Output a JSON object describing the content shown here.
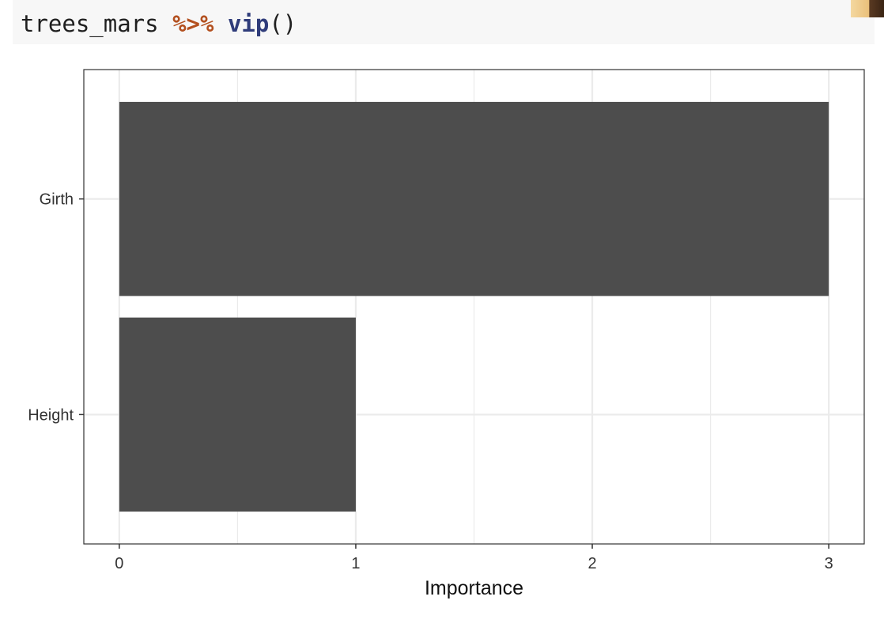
{
  "code": {
    "object": "trees_mars",
    "operator": "%>%",
    "function": "vip",
    "parens": "()"
  },
  "avatar_icon": "user-avatar-icon",
  "chart_data": {
    "type": "bar",
    "orientation": "horizontal",
    "categories": [
      "Girth",
      "Height"
    ],
    "values": [
      3,
      1
    ],
    "xlabel": "Importance",
    "ylabel": "",
    "xlim": [
      -0.15,
      3.15
    ],
    "xticks": [
      "0",
      "1",
      "2",
      "3"
    ],
    "grid": true,
    "bar_color": "#4d4d4d",
    "grid_color": "#ebebeb"
  }
}
